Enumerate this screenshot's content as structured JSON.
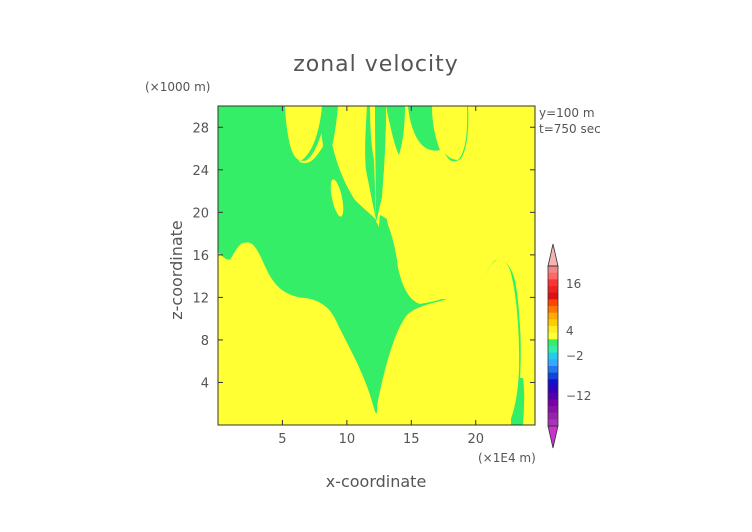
{
  "chart_data": {
    "type": "contour",
    "title": "zonal velocity",
    "xlabel": "x-coordinate",
    "ylabel": "z-coordinate",
    "x_unit": "(×1E4 m)",
    "y_unit": "(×1000 m)",
    "annotations": [
      "y=100 m",
      "t=750 sec"
    ],
    "xlim": [
      0,
      24.6
    ],
    "ylim": [
      0,
      30
    ],
    "x_ticks": [
      5,
      10,
      15,
      20
    ],
    "y_ticks": [
      4,
      8,
      12,
      16,
      20,
      24,
      28
    ],
    "grid": false,
    "colors": {
      "positive_fill": "#ffff33",
      "negative_fill": "#33ee66"
    },
    "colorbar": {
      "tick_values": [
        16,
        4,
        -2,
        -12
      ],
      "tick_labels": [
        "16",
        "4",
        "−2",
        "−12"
      ]
    }
  }
}
